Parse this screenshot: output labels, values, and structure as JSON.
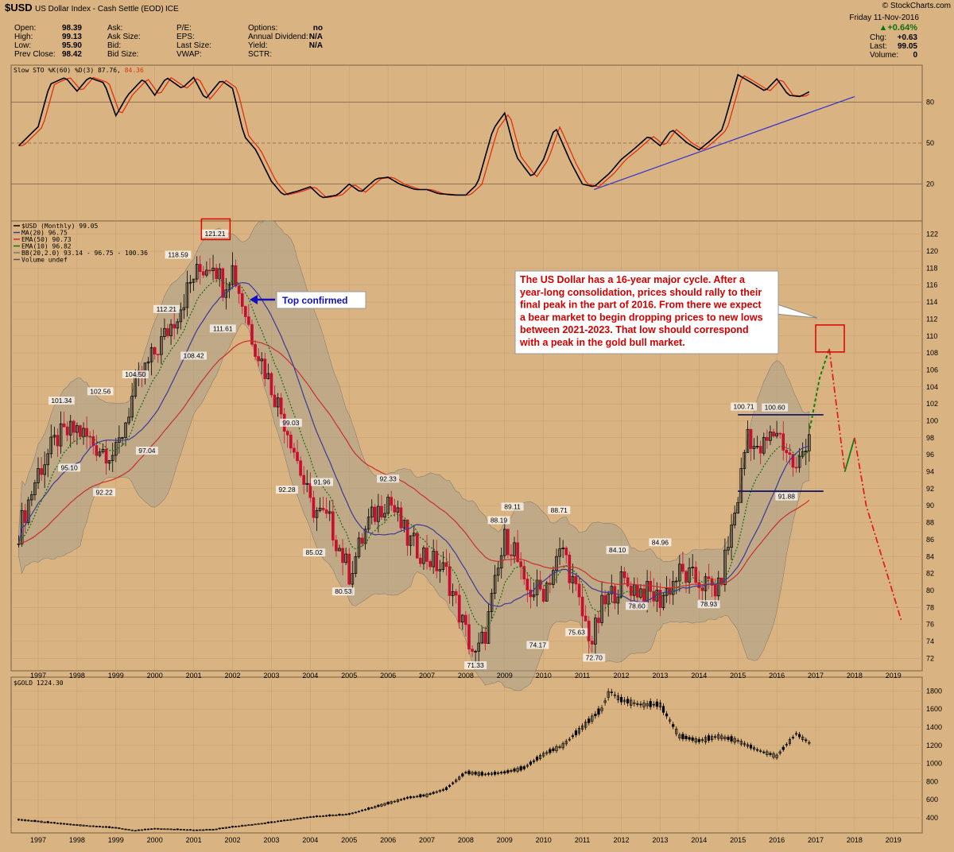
{
  "header": {
    "symbol": "$USD",
    "name": "US Dollar Index - Cash Settle (EOD)",
    "exchange": "ICE",
    "watermark": "© StockCharts.com",
    "date": "Friday  11-Nov-2016",
    "left_fields": [
      {
        "label": "Open:",
        "value": "98.39"
      },
      {
        "label": "High:",
        "value": "99.13"
      },
      {
        "label": "Low:",
        "value": "95.90"
      },
      {
        "label": "Prev Close:",
        "value": "98.42"
      }
    ],
    "mid_fields": [
      "Ask:",
      "Ask Size:",
      "Bid:",
      "Bid Size:"
    ],
    "mid2_fields": [
      "P/E:",
      "EPS:",
      "Last Size:",
      "VWAP:"
    ],
    "right_fields": [
      {
        "label": "Options:",
        "value": "no"
      },
      {
        "label": "Annual Dividend:",
        "value": "N/A"
      },
      {
        "label": "Yield:",
        "value": "N/A"
      },
      {
        "label": "SCTR:",
        "value": ""
      }
    ],
    "change_pct": "▲+0.64%",
    "quote_fields": [
      {
        "label": "Chg:",
        "value": "+0.63"
      },
      {
        "label": "Last:",
        "value": "99.05"
      },
      {
        "label": "Volume:",
        "value": "0"
      }
    ]
  },
  "stoch_panel": {
    "legend_prefix": "Slow STO %K(60) %D(3) 87.76, ",
    "legend_value": "84.36",
    "levels": [
      "80",
      "50",
      "20"
    ],
    "colors": {
      "k": "#000000",
      "d": "#e03010",
      "trend": "#3030d0"
    }
  },
  "price_panel": {
    "legend": [
      "$USD (Monthly) 99.05",
      "MA(20) 96.75",
      "EMA(50) 90.73",
      "EMA(10) 96.82",
      "BB(20,2.0) 93.14 - 96.75 - 100.36",
      "Volume undef"
    ],
    "y_ticks": [
      "72",
      "74",
      "76",
      "78",
      "80",
      "82",
      "84",
      "86",
      "88",
      "90",
      "92",
      "94",
      "96",
      "98",
      "100",
      "102",
      "104",
      "106",
      "108",
      "110",
      "112",
      "114",
      "116",
      "118",
      "120",
      "122"
    ],
    "annotation": [
      "The US Dollar has a 16-year major cycle. After a",
      "year-long consolidation, prices should rally to their",
      "final peak in the part of 2016. From there we expect",
      "a bear market to begin dropping prices to new lows",
      "between 2021-2023. That low should correspond",
      "with a peak in the gold bull market."
    ],
    "top_confirmed": "Top confirmed",
    "peak_labels": [
      "121.21",
      "118.59",
      "112.21",
      "111.61",
      "108.42",
      "104.50",
      "102.56",
      "101.34",
      "95.10",
      "92.22",
      "97.04",
      "99.03",
      "92.28",
      "91.96",
      "85.02",
      "80.53",
      "92.33",
      "71.33",
      "88.19",
      "89.11",
      "88.71",
      "74.17",
      "75.63",
      "72.70",
      "84.10",
      "78.60",
      "84.96",
      "78.93",
      "100.71",
      "100.60",
      "91.88"
    ]
  },
  "gold_panel": {
    "legend": "$GOLD 1224.30",
    "y_ticks": [
      "400",
      "600",
      "800",
      "1000",
      "1200",
      "1400",
      "1600",
      "1800"
    ]
  },
  "x_axis": {
    "years": [
      "1997",
      "1998",
      "1999",
      "2000",
      "2001",
      "2002",
      "2003",
      "2004",
      "2005",
      "2006",
      "2007",
      "2008",
      "2009",
      "2010",
      "2011",
      "2012",
      "2013",
      "2014",
      "2015",
      "2016",
      "2017",
      "2018",
      "2019"
    ]
  },
  "chart_data": [
    {
      "type": "line",
      "title": "$USD (Monthly) 99.05",
      "x": [
        1996.5,
        1997.0,
        1997.5,
        1998.0,
        1998.5,
        1999.0,
        1999.5,
        2000.0,
        2000.5,
        2001.0,
        2001.5,
        2001.75,
        2002.0,
        2002.5,
        2003.0,
        2003.5,
        2004.0,
        2004.5,
        2005.0,
        2005.5,
        2006.0,
        2006.5,
        2007.0,
        2007.5,
        2008.0,
        2008.25,
        2008.5,
        2009.0,
        2009.25,
        2009.5,
        2010.0,
        2010.5,
        2011.0,
        2011.25,
        2011.5,
        2012.0,
        2012.5,
        2013.0,
        2013.5,
        2014.0,
        2014.5,
        2015.0,
        2015.25,
        2015.5,
        2016.0,
        2016.5,
        2016.85
      ],
      "y": [
        87,
        94,
        98,
        99,
        97,
        96,
        104,
        108,
        112,
        117,
        119,
        116,
        118,
        110,
        104,
        98,
        90,
        88,
        82,
        88,
        91,
        86,
        84,
        82,
        75,
        72,
        75,
        86,
        85,
        80,
        80,
        85,
        77,
        74,
        78,
        81,
        80,
        79,
        82,
        81,
        80,
        91,
        99,
        96,
        99,
        94,
        99.05
      ],
      "ylim": [
        71,
        123
      ],
      "series_colors": {
        "up": "#000000",
        "down": "#c8102e",
        "ma20": "#3a3a9a",
        "ema50": "#c83030",
        "ema10": "#107010"
      }
    },
    {
      "type": "line",
      "title": "Projection",
      "x": [
        2016.85,
        2017.1,
        2017.35,
        2017.75,
        2018.0,
        2018.3,
        2019.2
      ],
      "y": [
        99.05,
        105,
        108.5,
        94,
        98,
        90,
        76.5
      ]
    },
    {
      "type": "line",
      "title": "$GOLD 1224.30",
      "x": [
        1996.5,
        1997.0,
        1998.0,
        1999.0,
        1999.5,
        2000.0,
        2001.0,
        2001.5,
        2002.0,
        2003.0,
        2004.0,
        2005.0,
        2006.0,
        2006.5,
        2007.0,
        2007.5,
        2008.0,
        2008.5,
        2009.0,
        2009.5,
        2010.0,
        2010.5,
        2011.0,
        2011.5,
        2011.7,
        2012.0,
        2012.5,
        2013.0,
        2013.5,
        2014.0,
        2014.5,
        2015.0,
        2015.5,
        2016.0,
        2016.5,
        2016.85
      ],
      "y": [
        380,
        360,
        320,
        290,
        260,
        280,
        265,
        270,
        300,
        350,
        410,
        440,
        560,
        620,
        650,
        720,
        900,
        880,
        900,
        950,
        1100,
        1200,
        1400,
        1600,
        1800,
        1700,
        1650,
        1650,
        1300,
        1250,
        1300,
        1250,
        1150,
        1080,
        1330,
        1224
      ],
      "ylim": [
        250,
        1900
      ]
    },
    {
      "type": "line",
      "title": "Slow STO %K(60) %D(3) 87.76, 84.36",
      "x": [
        1996.5,
        1997.0,
        1997.3,
        1997.7,
        1998.0,
        1998.3,
        1998.7,
        1999.0,
        1999.3,
        1999.7,
        2000.0,
        2000.3,
        2000.7,
        2001.0,
        2001.3,
        2001.7,
        2002.0,
        2002.3,
        2002.6,
        2003.0,
        2003.3,
        2003.7,
        2004.0,
        2004.3,
        2004.7,
        2005.0,
        2005.3,
        2005.7,
        2006.0,
        2006.3,
        2006.7,
        2007.0,
        2007.3,
        2007.7,
        2008.0,
        2008.3,
        2008.7,
        2009.0,
        2009.3,
        2009.7,
        2010.0,
        2010.3,
        2010.7,
        2011.0,
        2011.3,
        2011.7,
        2012.0,
        2012.3,
        2012.7,
        2013.0,
        2013.3,
        2013.7,
        2014.0,
        2014.3,
        2014.6,
        2015.0,
        2015.3,
        2015.7,
        2016.0,
        2016.3,
        2016.6,
        2016.85
      ],
      "y": [
        48,
        62,
        93,
        98,
        88,
        98,
        94,
        70,
        85,
        97,
        85,
        98,
        90,
        98,
        82,
        96,
        90,
        55,
        45,
        22,
        12,
        15,
        18,
        10,
        12,
        20,
        14,
        24,
        25,
        20,
        16,
        16,
        13,
        12,
        12,
        20,
        60,
        72,
        40,
        25,
        38,
        62,
        36,
        20,
        18,
        28,
        38,
        45,
        55,
        48,
        60,
        50,
        45,
        52,
        60,
        100,
        95,
        88,
        97,
        85,
        84,
        87.76
      ],
      "ylim": [
        0,
        110
      ]
    }
  ]
}
